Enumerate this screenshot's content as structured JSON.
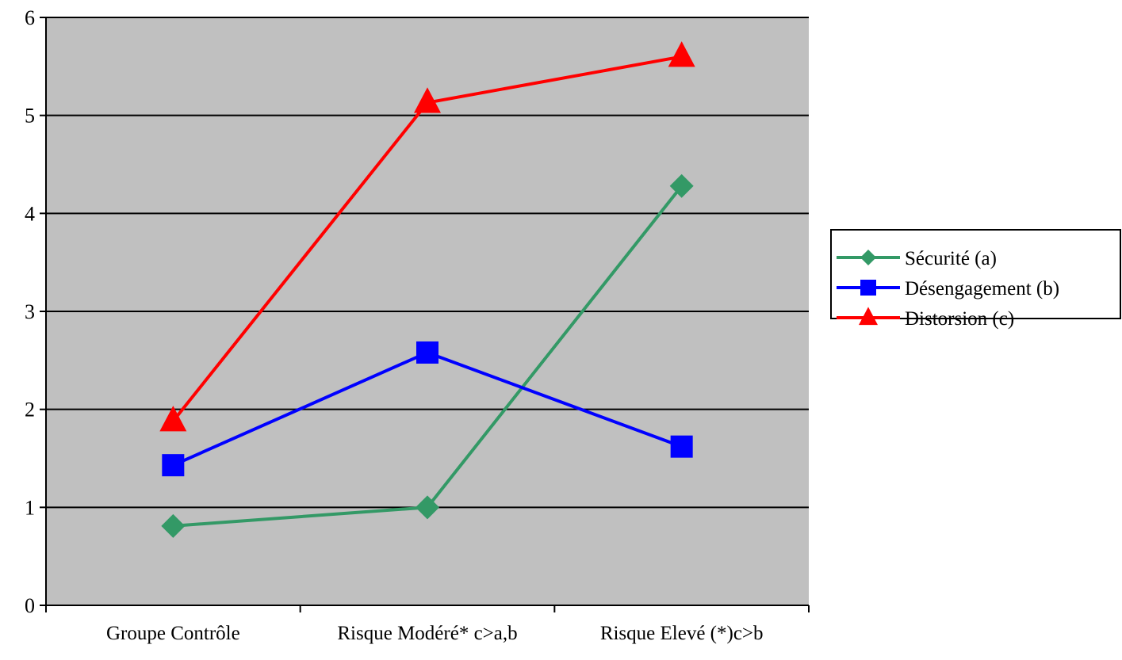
{
  "chart_data": {
    "type": "line",
    "title": "",
    "xlabel": "",
    "ylabel": "",
    "categories": [
      "Groupe Contrôle",
      "Risque Modéré* c>a,b",
      "Risque Elevé (*)c>b"
    ],
    "ylim": [
      0,
      6
    ],
    "yticks": [
      "0",
      "1",
      "2",
      "3",
      "4",
      "5",
      "6"
    ],
    "grid": true,
    "plot_background": "#c0c0c0",
    "legend_position": "right",
    "series": [
      {
        "name": "Sécurité (a)",
        "color": "#339966",
        "marker": "diamond",
        "values": [
          0.81,
          1.0,
          4.28
        ]
      },
      {
        "name": "Désengagement (b)",
        "color": "#0000ff",
        "marker": "square",
        "values": [
          1.43,
          2.58,
          1.62
        ]
      },
      {
        "name": "Distorsion (c)",
        "color": "#ff0000",
        "marker": "triangle",
        "values": [
          1.88,
          5.13,
          5.6
        ]
      }
    ]
  }
}
